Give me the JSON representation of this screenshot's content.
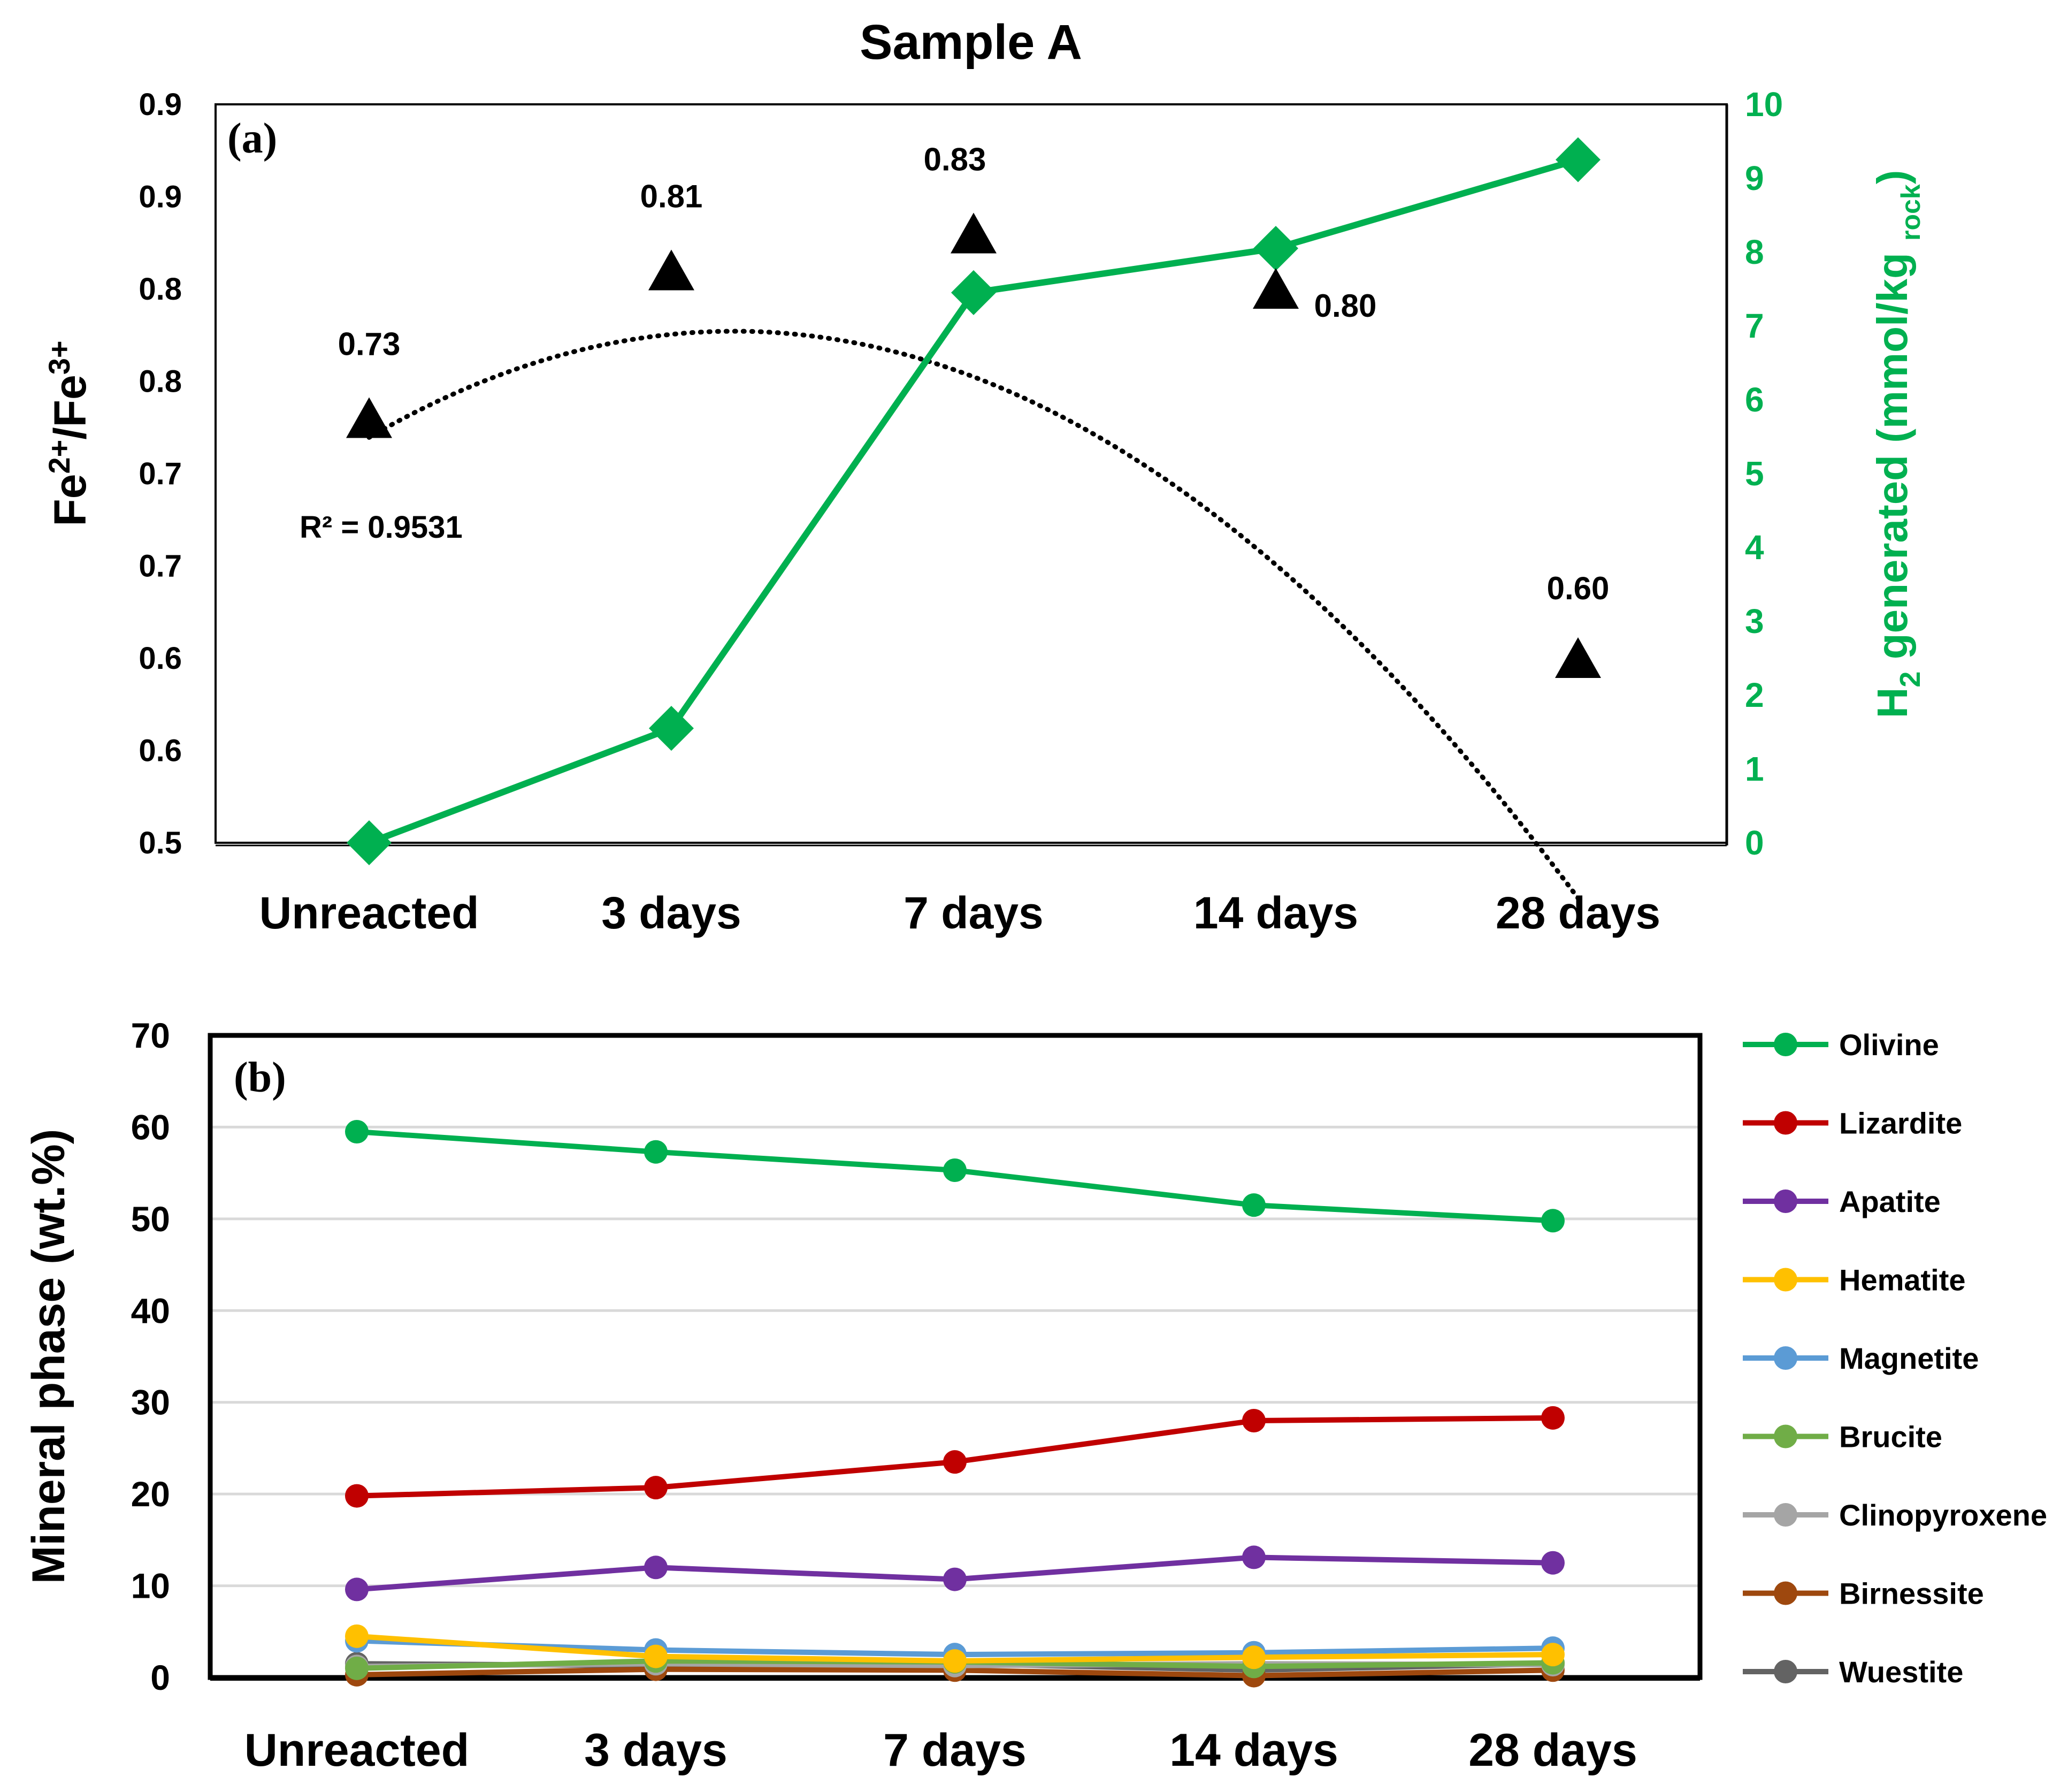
{
  "title": "Sample A",
  "chart_data": [
    {
      "panel": "(a)",
      "type": "line",
      "categories": [
        "Unreacted",
        "3 days",
        "7 days",
        "14 days",
        "28 days"
      ],
      "left_axis": {
        "label_main": "Fe",
        "sup1": "2+",
        "slash": "/Fe",
        "sup2": "3+",
        "range": [
          0.5,
          0.9
        ],
        "tick_labels": [
          "0.5",
          "0.6",
          "0.6",
          "0.7",
          "0.7",
          "0.8",
          "0.8",
          "0.9",
          "0.9"
        ]
      },
      "right_axis": {
        "label_main": "H",
        "sub1": "2",
        "label_rest": " generated (mmol/kg ",
        "sub2": "rock",
        "close": ")",
        "range": [
          0,
          10
        ],
        "tick_labels": [
          "0",
          "1",
          "2",
          "3",
          "4",
          "5",
          "6",
          "7",
          "8",
          "9",
          "10"
        ],
        "color": "#00B050"
      },
      "series": [
        {
          "name": "Fe2+/Fe3+",
          "axis": "left",
          "marker": "triangle",
          "color": "#000000",
          "values": [
            0.73,
            0.81,
            0.83,
            0.8,
            0.6
          ],
          "data_labels": [
            "0.73",
            "0.81",
            "0.83",
            "0.80",
            "0.60"
          ]
        },
        {
          "name": "H2 generated",
          "axis": "right",
          "marker": "diamond",
          "color": "#00B050",
          "values": [
            0,
            1.55,
            7.45,
            8.05,
            9.25
          ]
        }
      ],
      "trendline": {
        "type": "polynomial",
        "style": "dotted",
        "r2_label": "R² = 0.9531",
        "coefficients": [
          0.585,
          0.174,
          -0.0394
        ]
      }
    },
    {
      "panel": "(b)",
      "type": "line",
      "categories": [
        "Unreacted",
        "3 days",
        "7 days",
        "14 days",
        "28 days"
      ],
      "ylabel": "Mineral phase (wt.%)",
      "ylim": [
        0,
        70
      ],
      "y_ticks": [
        "0",
        "10",
        "20",
        "30",
        "40",
        "50",
        "60",
        "70"
      ],
      "grid": true,
      "legend": "right",
      "series": [
        {
          "name": "Olivine",
          "color": "#00B050",
          "values": [
            59.5,
            57.3,
            55.3,
            51.5,
            49.8
          ]
        },
        {
          "name": "Lizardite",
          "color": "#C00000",
          "values": [
            19.8,
            20.7,
            23.5,
            28.0,
            28.3
          ]
        },
        {
          "name": "Apatite",
          "color": "#7030A0",
          "values": [
            9.6,
            12.0,
            10.7,
            13.1,
            12.5
          ]
        },
        {
          "name": "Hematite",
          "color": "#FFC000",
          "values": [
            4.5,
            2.3,
            1.8,
            2.2,
            2.5
          ]
        },
        {
          "name": "Magnetite",
          "color": "#5B9BD5",
          "values": [
            4.0,
            3.0,
            2.5,
            2.7,
            3.2
          ]
        },
        {
          "name": "Brucite",
          "color": "#70AD47",
          "values": [
            1.0,
            1.8,
            1.7,
            1.2,
            1.6
          ]
        },
        {
          "name": "Clinopyroxene",
          "color": "#A5A5A5",
          "values": [
            1.2,
            1.5,
            1.3,
            1.5,
            1.4
          ]
        },
        {
          "name": "Birnessite",
          "color": "#9E480E",
          "values": [
            0.3,
            0.9,
            0.8,
            0.2,
            0.8
          ]
        },
        {
          "name": "Wuestite",
          "color": "#636363",
          "values": [
            1.5,
            1.3,
            1.5,
            0.8,
            1.5
          ]
        }
      ]
    }
  ]
}
